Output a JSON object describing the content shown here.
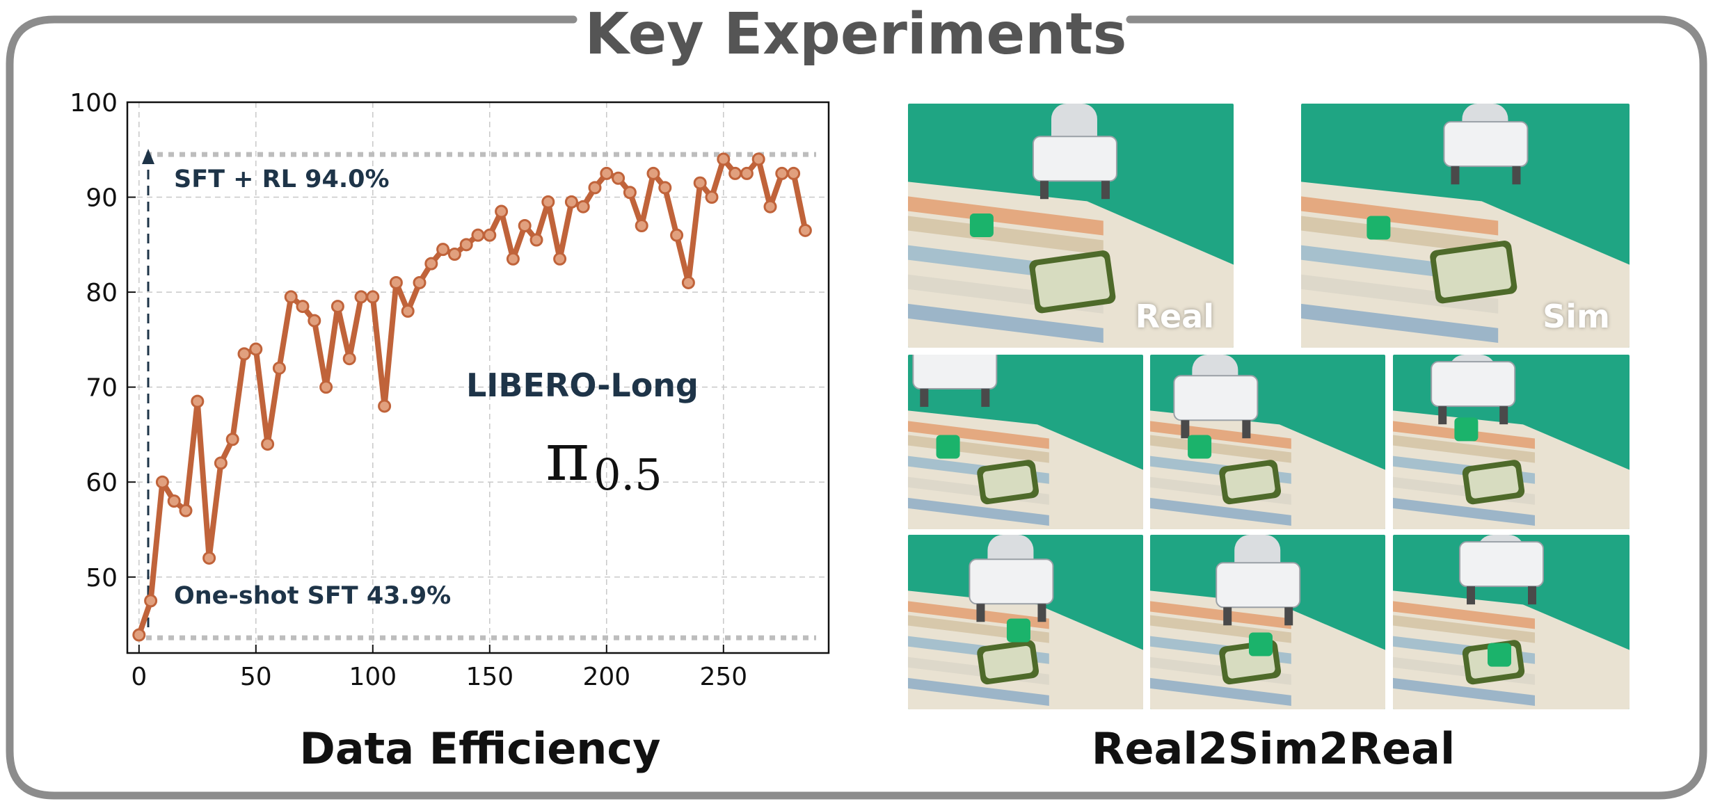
{
  "header": {
    "title": "Key Experiments"
  },
  "colors": {
    "frame": "#8c8c8c",
    "series": "#c0633a",
    "series_marker_fill": "#e1a07e",
    "annotation_text": "#1e3448",
    "reference_line": "#bdbdbd",
    "arrow": "#1e3448",
    "green_backdrop": "#1fa583",
    "cube": "#1bb36b"
  },
  "left_panel": {
    "section_title": "Data Efficiency",
    "annotations": {
      "top": "SFT + RL 94.0%",
      "bottom": "One-shot SFT 43.9%",
      "benchmark": "LIBERO-Long"
    },
    "model_symbol": {
      "base": "π",
      "subscript": "0.5"
    }
  },
  "right_panel": {
    "section_title": "Real2Sim2Real",
    "labels": {
      "real": "Real",
      "sim": "Sim"
    },
    "photos": [
      {
        "role": "real-scene",
        "label_key": "real"
      },
      {
        "role": "sim-scene",
        "label_key": "sim"
      },
      {
        "role": "rollout-frame-1"
      },
      {
        "role": "rollout-frame-2"
      },
      {
        "role": "rollout-frame-3"
      },
      {
        "role": "rollout-frame-4"
      },
      {
        "role": "rollout-frame-5"
      },
      {
        "role": "rollout-frame-6"
      }
    ]
  },
  "chart_data": {
    "type": "line",
    "title": "",
    "xlabel": "",
    "ylabel": "",
    "xlim": [
      -5,
      295
    ],
    "ylim": [
      42,
      100
    ],
    "xticks": [
      0,
      50,
      100,
      150,
      200,
      250
    ],
    "yticks": [
      50,
      60,
      70,
      80,
      90,
      100
    ],
    "grid": true,
    "reference_lines": [
      {
        "y": 94.5,
        "style": "dotted"
      },
      {
        "y": 43.6,
        "style": "dotted"
      }
    ],
    "series": [
      {
        "x": [
          0,
          5,
          10,
          15,
          20,
          25,
          30,
          35,
          40,
          45,
          50,
          55,
          60,
          65,
          70,
          75,
          80,
          85,
          90,
          95,
          100,
          105,
          110,
          115,
          120,
          125,
          130,
          135,
          140,
          145,
          150,
          155,
          160,
          165,
          170,
          175,
          180,
          185,
          190,
          195,
          200,
          205,
          210,
          215,
          220,
          225,
          230,
          235,
          240,
          245,
          250,
          255,
          260,
          265,
          270,
          275,
          280,
          285
        ],
        "values": [
          43.9,
          47.5,
          60.0,
          58.0,
          57.0,
          68.5,
          52.0,
          62.0,
          64.5,
          73.5,
          74.0,
          64.0,
          72.0,
          79.5,
          78.5,
          77.0,
          70.0,
          78.5,
          73.0,
          79.5,
          79.5,
          68.0,
          81.0,
          78.0,
          81.0,
          83.0,
          84.5,
          84.0,
          85.0,
          86.0,
          86.0,
          88.5,
          83.5,
          87.0,
          85.5,
          89.5,
          83.5,
          89.5,
          89.0,
          91.0,
          92.5,
          92.0,
          90.5,
          87.0,
          92.5,
          91.0,
          86.0,
          81.0,
          91.5,
          90.0,
          94.0,
          92.5,
          92.5,
          94.0,
          89.0,
          92.5,
          92.5,
          86.5
        ]
      }
    ]
  }
}
